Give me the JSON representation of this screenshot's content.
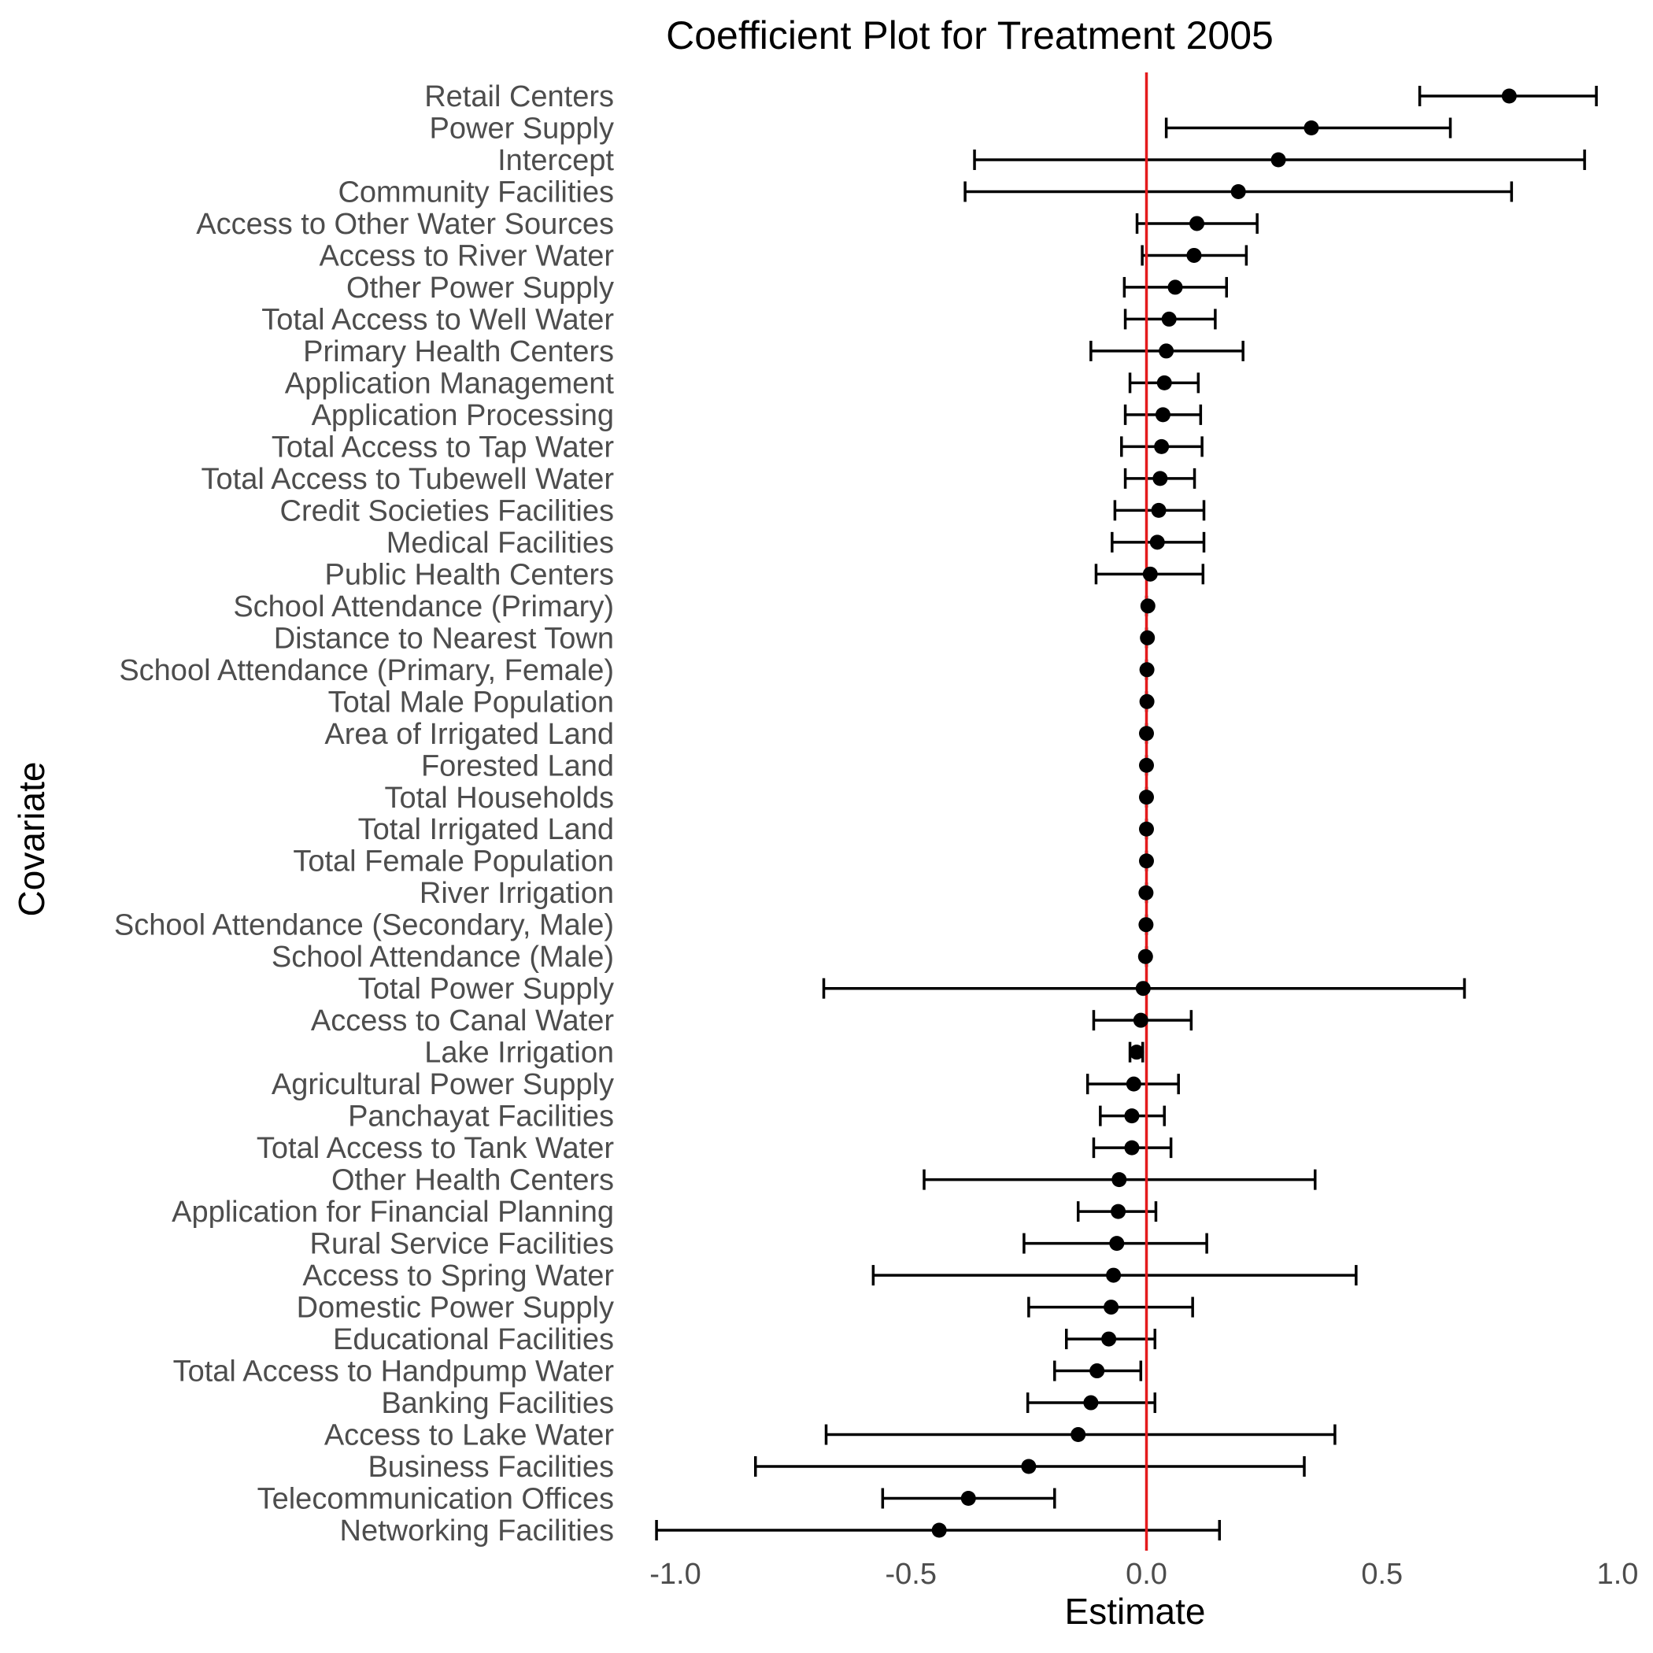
{
  "chart_data": {
    "type": "scatter",
    "subtype": "coefficient-plot",
    "title": "Coefficient Plot for Treatment 2005",
    "xlabel": "Estimate",
    "ylabel": "Covariate",
    "xlim": [
      -1.0,
      1.0
    ],
    "xticks": [
      -1.0,
      -0.5,
      0.0,
      0.5,
      1.0
    ],
    "xtick_labels": [
      "-1.0",
      "-0.5",
      "0.0",
      "0.5",
      "1.0"
    ],
    "reference_line": {
      "x": 0,
      "color": "#e41a1c"
    },
    "point_color": "#000000",
    "grid": false,
    "legend": "none",
    "covariates": [
      "Retail Centers",
      "Power Supply",
      "Intercept",
      "Community Facilities",
      "Access to Other Water Sources",
      "Access to River Water",
      "Other Power Supply",
      "Total Access to Well Water",
      "Primary Health Centers",
      "Application Management",
      "Application Processing",
      "Total Access to Tap Water",
      "Total Access to Tubewell Water",
      "Credit Societies Facilities",
      "Medical Facilities",
      "Public Health Centers",
      "School Attendance (Primary)",
      "Distance to Nearest Town",
      "School Attendance (Primary, Female)",
      "Total Male Population",
      "Area of Irrigated Land",
      "Forested Land",
      "Total Households",
      "Total Irrigated Land",
      "Total Female Population",
      "River Irrigation",
      "School Attendance (Secondary, Male)",
      "School Attendance (Male)",
      "Total Power Supply",
      "Access to Canal Water",
      "Lake Irrigation",
      "Agricultural Power Supply",
      "Panchayat Facilities",
      "Total Access to Tank Water",
      "Other Health Centers",
      "Application for Financial Planning",
      "Rural Service Facilities",
      "Access to Spring Water",
      "Domestic Power Supply",
      "Educational Facilities",
      "Total Access to Handpump Water",
      "Banking Facilities",
      "Access to Lake Water",
      "Business Facilities",
      "Telecommunication Offices",
      "Networking Facilities"
    ],
    "estimates": [
      0.77,
      0.35,
      0.28,
      0.195,
      0.107,
      0.101,
      0.061,
      0.048,
      0.042,
      0.038,
      0.035,
      0.032,
      0.029,
      0.026,
      0.023,
      0.008,
      0.003,
      0.002,
      0.001,
      0.001,
      0.0,
      0.0,
      0.0,
      0.0,
      0.0,
      -0.001,
      -0.001,
      -0.002,
      -0.007,
      -0.012,
      -0.021,
      -0.027,
      -0.031,
      -0.031,
      -0.058,
      -0.06,
      -0.063,
      -0.07,
      -0.075,
      -0.08,
      -0.105,
      -0.118,
      -0.145,
      -0.25,
      -0.378,
      -0.44
    ],
    "ci_low": [
      0.58,
      0.042,
      -0.365,
      -0.385,
      -0.02,
      -0.009,
      -0.047,
      -0.045,
      -0.118,
      -0.035,
      -0.045,
      -0.053,
      -0.045,
      -0.067,
      -0.073,
      -0.107,
      0.0,
      0.0,
      0.0,
      0.0,
      0.0,
      0.0,
      0.0,
      0.0,
      0.0,
      0.0,
      0.0,
      0.0,
      -0.685,
      -0.112,
      -0.035,
      -0.125,
      -0.098,
      -0.112,
      -0.472,
      -0.145,
      -0.26,
      -0.58,
      -0.25,
      -0.17,
      -0.195,
      -0.252,
      -0.68,
      -0.83,
      -0.56,
      -1.04
    ],
    "ci_high": [
      0.955,
      0.645,
      0.93,
      0.775,
      0.235,
      0.212,
      0.17,
      0.146,
      0.205,
      0.11,
      0.115,
      0.118,
      0.102,
      0.122,
      0.122,
      0.12,
      0.0,
      0.0,
      0.0,
      0.0,
      0.0,
      0.0,
      0.0,
      0.0,
      0.0,
      0.0,
      0.0,
      0.0,
      0.675,
      0.095,
      -0.008,
      0.068,
      0.038,
      0.052,
      0.358,
      0.02,
      0.128,
      0.445,
      0.098,
      0.018,
      -0.012,
      0.018,
      0.4,
      0.335,
      -0.195,
      0.155
    ]
  }
}
